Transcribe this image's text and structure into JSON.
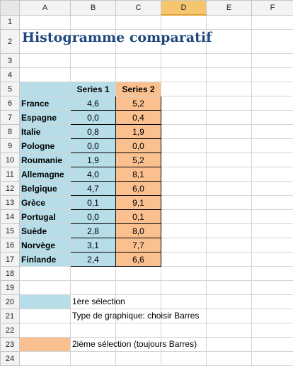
{
  "columns": [
    "A",
    "B",
    "C",
    "D",
    "E",
    "F"
  ],
  "selected_column": "D",
  "title": "Histogramme comparatif",
  "series_headers": [
    "Series 1",
    "Series 2"
  ],
  "rows": [
    {
      "country": "France",
      "s1": "4,6",
      "s2": "5,2"
    },
    {
      "country": "Espagne",
      "s1": "0,0",
      "s2": "0,4"
    },
    {
      "country": "Italie",
      "s1": "0,8",
      "s2": "1,9"
    },
    {
      "country": "Pologne",
      "s1": "0,0",
      "s2": "0,0"
    },
    {
      "country": "Roumanie",
      "s1": "1,9",
      "s2": "5,2"
    },
    {
      "country": "Allemagne",
      "s1": "4,0",
      "s2": "8,1"
    },
    {
      "country": "Belgique",
      "s1": "4,7",
      "s2": "6,0"
    },
    {
      "country": "Grèce",
      "s1": "0,1",
      "s2": "9,1"
    },
    {
      "country": "Portugal",
      "s1": "0,0",
      "s2": "0,1"
    },
    {
      "country": "Suède",
      "s1": "2,8",
      "s2": "8,0"
    },
    {
      "country": "Norvège",
      "s1": "3,1",
      "s2": "7,7"
    },
    {
      "country": "Finlande",
      "s1": "2,4",
      "s2": "6,6"
    }
  ],
  "notes": {
    "first_selection": "1ère sélection",
    "chart_type": "Type de graphique: choisir Barres",
    "second_selection": "2ième sélection (toujours Barres)"
  },
  "colors": {
    "series1": "#b7dde8",
    "series2": "#fac090",
    "title": "#1f497d",
    "selected_header": "#f6c66e"
  }
}
